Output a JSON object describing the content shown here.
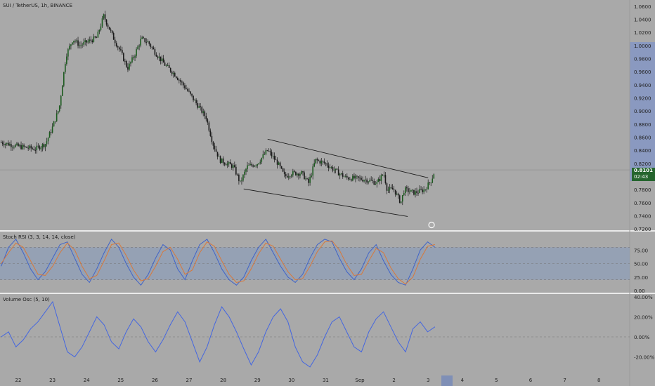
{
  "header": {
    "title": "SUI / TetherUS, 1h, BINANCE"
  },
  "price_tag": {
    "price": "0.8101",
    "countdown": "02:43"
  },
  "stoch": {
    "title": "Stoch RSI (3, 3, 14, 14, close)"
  },
  "volosc": {
    "title": "Volume Osc (5, 10)"
  },
  "colors": {
    "background": "#a9a9a9",
    "candle": "#1c5c1f",
    "candle_wick": "#2a2a2a",
    "stoch_k": "#3f63c8",
    "stoch_d": "#d9793a",
    "stoch_band": "#8f9fb8",
    "volosc_line": "#4466e0",
    "axis_highlight": "#8a99c0",
    "price_tag": "#25652e"
  },
  "chart_data": [
    {
      "type": "candlestick",
      "title": "SUI / TetherUS, 1h, BINANCE",
      "x_ticks": [
        "22",
        "23",
        "24",
        "25",
        "26",
        "27",
        "28",
        "29",
        "30",
        "31",
        "Sep",
        "2",
        "3",
        "4",
        "5",
        "6",
        "7",
        "8"
      ],
      "y_ticks": [
        "1.0600",
        "1.0400",
        "1.0200",
        "1.0000",
        "0.9800",
        "0.9600",
        "0.9400",
        "0.9200",
        "0.9000",
        "0.8800",
        "0.8600",
        "0.8400",
        "0.8200",
        "0.7800",
        "0.7600",
        "0.7400",
        "0.7200"
      ],
      "ylim": [
        0.718,
        1.063
      ],
      "last_price": 0.8101,
      "keypoints_close": [
        [
          21.5,
          0.852
        ],
        [
          22.0,
          0.846
        ],
        [
          22.5,
          0.842
        ],
        [
          22.8,
          0.85
        ],
        [
          23.0,
          0.875
        ],
        [
          23.2,
          0.905
        ],
        [
          23.4,
          0.985
        ],
        [
          23.6,
          1.01
        ],
        [
          23.8,
          1.0
        ],
        [
          24.0,
          1.005
        ],
        [
          24.3,
          1.012
        ],
        [
          24.5,
          1.045
        ],
        [
          24.8,
          1.01
        ],
        [
          25.0,
          0.99
        ],
        [
          25.2,
          0.965
        ],
        [
          25.4,
          0.985
        ],
        [
          25.6,
          1.01
        ],
        [
          25.8,
          1.005
        ],
        [
          26.0,
          0.99
        ],
        [
          26.3,
          0.97
        ],
        [
          26.6,
          0.955
        ],
        [
          26.9,
          0.935
        ],
        [
          27.1,
          0.92
        ],
        [
          27.3,
          0.905
        ],
        [
          27.5,
          0.89
        ],
        [
          27.7,
          0.85
        ],
        [
          27.9,
          0.825
        ],
        [
          28.1,
          0.82
        ],
        [
          28.3,
          0.815
        ],
        [
          28.5,
          0.79
        ],
        [
          28.7,
          0.815
        ],
        [
          29.0,
          0.82
        ],
        [
          29.3,
          0.84
        ],
        [
          29.6,
          0.82
        ],
        [
          29.8,
          0.8
        ],
        [
          30.0,
          0.805
        ],
        [
          30.3,
          0.805
        ],
        [
          30.5,
          0.79
        ],
        [
          30.7,
          0.825
        ],
        [
          31.0,
          0.82
        ],
        [
          31.3,
          0.808
        ],
        [
          31.6,
          0.798
        ],
        [
          31.9,
          0.797
        ],
        [
          32.2,
          0.795
        ],
        [
          32.5,
          0.79
        ],
        [
          32.7,
          0.805
        ],
        [
          32.8,
          0.78
        ],
        [
          33.0,
          0.78
        ],
        [
          33.2,
          0.76
        ],
        [
          33.3,
          0.78
        ],
        [
          33.6,
          0.775
        ],
        [
          33.9,
          0.78
        ],
        [
          34.1,
          0.795
        ],
        [
          34.2,
          0.81
        ]
      ],
      "annotations": [
        "descending channel (trend lines)"
      ]
    },
    {
      "type": "line",
      "title": "Stoch RSI (3, 3, 14, 14, close)",
      "y_ticks": [
        "75.00",
        "50.00",
        "25.00",
        "0.00"
      ],
      "ylim": [
        0,
        100
      ],
      "band": [
        20,
        80
      ],
      "series": [
        {
          "name": "K",
          "values": [
            45,
            80,
            95,
            70,
            40,
            20,
            35,
            60,
            85,
            90,
            60,
            30,
            15,
            40,
            70,
            95,
            80,
            50,
            25,
            10,
            30,
            60,
            85,
            75,
            40,
            20,
            55,
            85,
            95,
            70,
            40,
            20,
            10,
            25,
            55,
            80,
            95,
            70,
            45,
            25,
            15,
            30,
            60,
            85,
            95,
            90,
            60,
            35,
            20,
            40,
            70,
            85,
            55,
            30,
            15,
            10,
            40,
            75,
            90,
            80
          ]
        },
        {
          "name": "D",
          "values": [
            50,
            70,
            88,
            80,
            55,
            30,
            28,
            45,
            70,
            88,
            75,
            45,
            22,
            28,
            55,
            85,
            88,
            65,
            38,
            18,
            22,
            45,
            72,
            80,
            58,
            30,
            38,
            70,
            90,
            82,
            55,
            30,
            15,
            18,
            40,
            68,
            88,
            82,
            58,
            35,
            20,
            22,
            45,
            72,
            90,
            92,
            75,
            48,
            28,
            30,
            55,
            78,
            70,
            42,
            22,
            12,
            25,
            58,
            82,
            85
          ]
        }
      ]
    },
    {
      "type": "line",
      "title": "Volume Osc (5, 10)",
      "y_ticks": [
        "40.00%",
        "20.00%",
        "0.00%",
        "-20.00%"
      ],
      "ylim": [
        -35,
        42
      ],
      "series": [
        {
          "name": "Volume Osc",
          "values": [
            0,
            5,
            -10,
            -3,
            8,
            15,
            25,
            35,
            10,
            -15,
            -20,
            -10,
            5,
            20,
            12,
            -5,
            -12,
            5,
            18,
            10,
            -5,
            -15,
            -3,
            12,
            25,
            15,
            -5,
            -25,
            -10,
            12,
            30,
            20,
            5,
            -12,
            -28,
            -15,
            5,
            20,
            28,
            15,
            -10,
            -25,
            -30,
            -18,
            0,
            15,
            20,
            5,
            -10,
            -15,
            5,
            18,
            25,
            10,
            -5,
            -15,
            8,
            15,
            5,
            10
          ]
        }
      ]
    }
  ]
}
